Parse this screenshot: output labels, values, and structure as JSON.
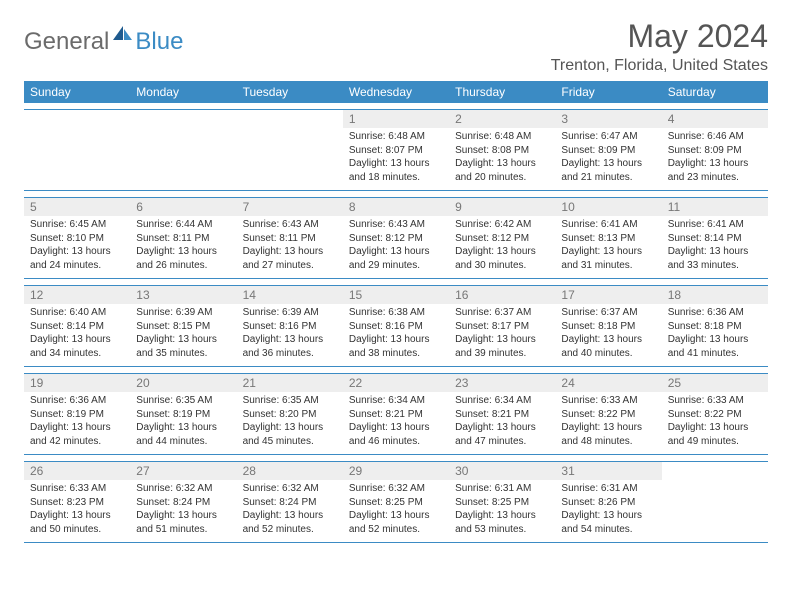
{
  "brand": {
    "text_gray": "General",
    "text_blue": "Blue"
  },
  "title": "May 2024",
  "location": "Trenton, Florida, United States",
  "colors": {
    "header_bg": "#3b8bc4",
    "header_text": "#ffffff",
    "daynum_bg": "#eeeeee",
    "daynum_text": "#777777",
    "body_text": "#333333",
    "rule": "#3b8bc4",
    "logo_gray": "#6b6b6b",
    "logo_blue": "#3b8bc4"
  },
  "typography": {
    "title_fontsize_pt": 24,
    "location_fontsize_pt": 12,
    "header_fontsize_pt": 9,
    "daynum_fontsize_pt": 9,
    "detail_fontsize_pt": 7.5
  },
  "day_headers": [
    "Sunday",
    "Monday",
    "Tuesday",
    "Wednesday",
    "Thursday",
    "Friday",
    "Saturday"
  ],
  "weeks": [
    [
      null,
      null,
      null,
      {
        "n": "1",
        "sr": "6:48 AM",
        "ss": "8:07 PM",
        "dl": "13 hours and 18 minutes."
      },
      {
        "n": "2",
        "sr": "6:48 AM",
        "ss": "8:08 PM",
        "dl": "13 hours and 20 minutes."
      },
      {
        "n": "3",
        "sr": "6:47 AM",
        "ss": "8:09 PM",
        "dl": "13 hours and 21 minutes."
      },
      {
        "n": "4",
        "sr": "6:46 AM",
        "ss": "8:09 PM",
        "dl": "13 hours and 23 minutes."
      }
    ],
    [
      {
        "n": "5",
        "sr": "6:45 AM",
        "ss": "8:10 PM",
        "dl": "13 hours and 24 minutes."
      },
      {
        "n": "6",
        "sr": "6:44 AM",
        "ss": "8:11 PM",
        "dl": "13 hours and 26 minutes."
      },
      {
        "n": "7",
        "sr": "6:43 AM",
        "ss": "8:11 PM",
        "dl": "13 hours and 27 minutes."
      },
      {
        "n": "8",
        "sr": "6:43 AM",
        "ss": "8:12 PM",
        "dl": "13 hours and 29 minutes."
      },
      {
        "n": "9",
        "sr": "6:42 AM",
        "ss": "8:12 PM",
        "dl": "13 hours and 30 minutes."
      },
      {
        "n": "10",
        "sr": "6:41 AM",
        "ss": "8:13 PM",
        "dl": "13 hours and 31 minutes."
      },
      {
        "n": "11",
        "sr": "6:41 AM",
        "ss": "8:14 PM",
        "dl": "13 hours and 33 minutes."
      }
    ],
    [
      {
        "n": "12",
        "sr": "6:40 AM",
        "ss": "8:14 PM",
        "dl": "13 hours and 34 minutes."
      },
      {
        "n": "13",
        "sr": "6:39 AM",
        "ss": "8:15 PM",
        "dl": "13 hours and 35 minutes."
      },
      {
        "n": "14",
        "sr": "6:39 AM",
        "ss": "8:16 PM",
        "dl": "13 hours and 36 minutes."
      },
      {
        "n": "15",
        "sr": "6:38 AM",
        "ss": "8:16 PM",
        "dl": "13 hours and 38 minutes."
      },
      {
        "n": "16",
        "sr": "6:37 AM",
        "ss": "8:17 PM",
        "dl": "13 hours and 39 minutes."
      },
      {
        "n": "17",
        "sr": "6:37 AM",
        "ss": "8:18 PM",
        "dl": "13 hours and 40 minutes."
      },
      {
        "n": "18",
        "sr": "6:36 AM",
        "ss": "8:18 PM",
        "dl": "13 hours and 41 minutes."
      }
    ],
    [
      {
        "n": "19",
        "sr": "6:36 AM",
        "ss": "8:19 PM",
        "dl": "13 hours and 42 minutes."
      },
      {
        "n": "20",
        "sr": "6:35 AM",
        "ss": "8:19 PM",
        "dl": "13 hours and 44 minutes."
      },
      {
        "n": "21",
        "sr": "6:35 AM",
        "ss": "8:20 PM",
        "dl": "13 hours and 45 minutes."
      },
      {
        "n": "22",
        "sr": "6:34 AM",
        "ss": "8:21 PM",
        "dl": "13 hours and 46 minutes."
      },
      {
        "n": "23",
        "sr": "6:34 AM",
        "ss": "8:21 PM",
        "dl": "13 hours and 47 minutes."
      },
      {
        "n": "24",
        "sr": "6:33 AM",
        "ss": "8:22 PM",
        "dl": "13 hours and 48 minutes."
      },
      {
        "n": "25",
        "sr": "6:33 AM",
        "ss": "8:22 PM",
        "dl": "13 hours and 49 minutes."
      }
    ],
    [
      {
        "n": "26",
        "sr": "6:33 AM",
        "ss": "8:23 PM",
        "dl": "13 hours and 50 minutes."
      },
      {
        "n": "27",
        "sr": "6:32 AM",
        "ss": "8:24 PM",
        "dl": "13 hours and 51 minutes."
      },
      {
        "n": "28",
        "sr": "6:32 AM",
        "ss": "8:24 PM",
        "dl": "13 hours and 52 minutes."
      },
      {
        "n": "29",
        "sr": "6:32 AM",
        "ss": "8:25 PM",
        "dl": "13 hours and 52 minutes."
      },
      {
        "n": "30",
        "sr": "6:31 AM",
        "ss": "8:25 PM",
        "dl": "13 hours and 53 minutes."
      },
      {
        "n": "31",
        "sr": "6:31 AM",
        "ss": "8:26 PM",
        "dl": "13 hours and 54 minutes."
      },
      null
    ]
  ],
  "labels": {
    "sunrise": "Sunrise:",
    "sunset": "Sunset:",
    "daylight": "Daylight:"
  }
}
